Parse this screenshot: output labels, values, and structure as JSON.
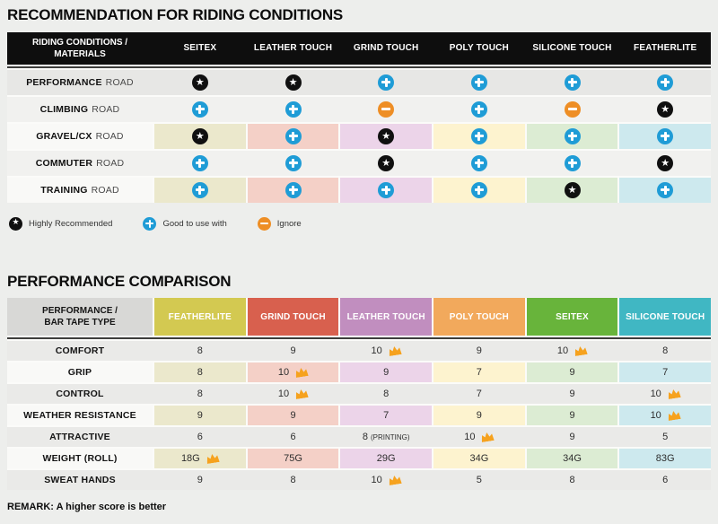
{
  "chart_data": [
    {
      "type": "table",
      "title": "RECOMMENDATION FOR RIDING CONDITIONS",
      "corner_label": [
        "RIDING CONDITIONS /",
        "MATERIALS"
      ],
      "columns": [
        "SEITEX",
        "LEATHER TOUCH",
        "GRIND TOUCH",
        "POLY TOUCH",
        "SILICONE TOUCH",
        "FEATHERLITE"
      ],
      "rows": [
        {
          "label_bold": "PERFORMANCE",
          "label_rest": "ROAD",
          "icons": [
            "star",
            "star",
            "plus",
            "plus",
            "plus",
            "plus"
          ]
        },
        {
          "label_bold": "CLIMBING",
          "label_rest": "ROAD",
          "icons": [
            "plus",
            "plus",
            "minus",
            "plus",
            "minus",
            "star"
          ]
        },
        {
          "label_bold": "GRAVEL/CX",
          "label_rest": "ROAD",
          "icons": [
            "star",
            "plus",
            "star",
            "plus",
            "plus",
            "plus"
          ]
        },
        {
          "label_bold": "COMMUTER",
          "label_rest": "ROAD",
          "icons": [
            "plus",
            "plus",
            "star",
            "plus",
            "plus",
            "star"
          ]
        },
        {
          "label_bold": "TRAINING",
          "label_rest": "ROAD",
          "icons": [
            "plus",
            "plus",
            "plus",
            "plus",
            "star",
            "plus"
          ]
        }
      ],
      "icon_legend": [
        {
          "icon": "star",
          "label": "Highly Recommended"
        },
        {
          "icon": "plus",
          "label": "Good to use with"
        },
        {
          "icon": "minus",
          "label": "Ignore"
        }
      ]
    },
    {
      "type": "table",
      "title": "PERFORMANCE COMPARISON",
      "corner_label": [
        "PERFORMANCE /",
        "BAR TAPE TYPE"
      ],
      "columns": [
        "FEATHERLITE",
        "GRIND TOUCH",
        "LEATHER TOUCH",
        "POLY TOUCH",
        "SEITEX",
        "SILICONE TOUCH"
      ],
      "rows": [
        {
          "label": "COMFORT",
          "values": [
            {
              "v": "8"
            },
            {
              "v": "9"
            },
            {
              "v": "10",
              "crown": true
            },
            {
              "v": "9"
            },
            {
              "v": "10",
              "crown": true
            },
            {
              "v": "8"
            }
          ]
        },
        {
          "label": "GRIP",
          "values": [
            {
              "v": "8"
            },
            {
              "v": "10",
              "crown": true
            },
            {
              "v": "9"
            },
            {
              "v": "7"
            },
            {
              "v": "9"
            },
            {
              "v": "7"
            }
          ]
        },
        {
          "label": "CONTROL",
          "values": [
            {
              "v": "8"
            },
            {
              "v": "10",
              "crown": true
            },
            {
              "v": "8"
            },
            {
              "v": "7"
            },
            {
              "v": "9"
            },
            {
              "v": "10",
              "crown": true
            }
          ]
        },
        {
          "label": "WEATHER RESISTANCE",
          "values": [
            {
              "v": "9"
            },
            {
              "v": "9"
            },
            {
              "v": "7"
            },
            {
              "v": "9"
            },
            {
              "v": "9"
            },
            {
              "v": "10",
              "crown": true
            }
          ]
        },
        {
          "label": "ATTRACTIVE",
          "values": [
            {
              "v": "6"
            },
            {
              "v": "6"
            },
            {
              "v": "8",
              "note": "(PRINTING)"
            },
            {
              "v": "10",
              "crown": true
            },
            {
              "v": "9"
            },
            {
              "v": "5"
            }
          ]
        },
        {
          "label": "WEIGHT (ROLL)",
          "values": [
            {
              "v": "18G",
              "crown": true
            },
            {
              "v": "75G"
            },
            {
              "v": "29G"
            },
            {
              "v": "34G"
            },
            {
              "v": "34G"
            },
            {
              "v": "83G"
            }
          ]
        },
        {
          "label": "SWEAT HANDS",
          "values": [
            {
              "v": "9"
            },
            {
              "v": "8"
            },
            {
              "v": "10",
              "crown": true
            },
            {
              "v": "5"
            },
            {
              "v": "8"
            },
            {
              "v": "6"
            }
          ]
        }
      ],
      "remark": "REMARK: A higher score is better"
    }
  ],
  "colors": {
    "page_background": "#edeeec",
    "star_badge": "#101010",
    "plus_badge": "#1f9cd6",
    "minus_badge": "#ee8e25",
    "crown": "#f6a21e",
    "table1_header_bg": "#0e0e0e",
    "table2_header": {
      "FEATHERLITE": "#d3c951",
      "GRIND TOUCH": "#d8604e",
      "LEATHER TOUCH": "#c18ebf",
      "POLY TOUCH": "#f2a95c",
      "SEITEX": "#68b43b",
      "SILICONE TOUCH": "#40b7c3"
    },
    "tint_columns": [
      "#ebe8cc",
      "#f4d0c7",
      "#ecd4e9",
      "#fdf3cf",
      "#dcecd3",
      "#cde9ee"
    ]
  }
}
